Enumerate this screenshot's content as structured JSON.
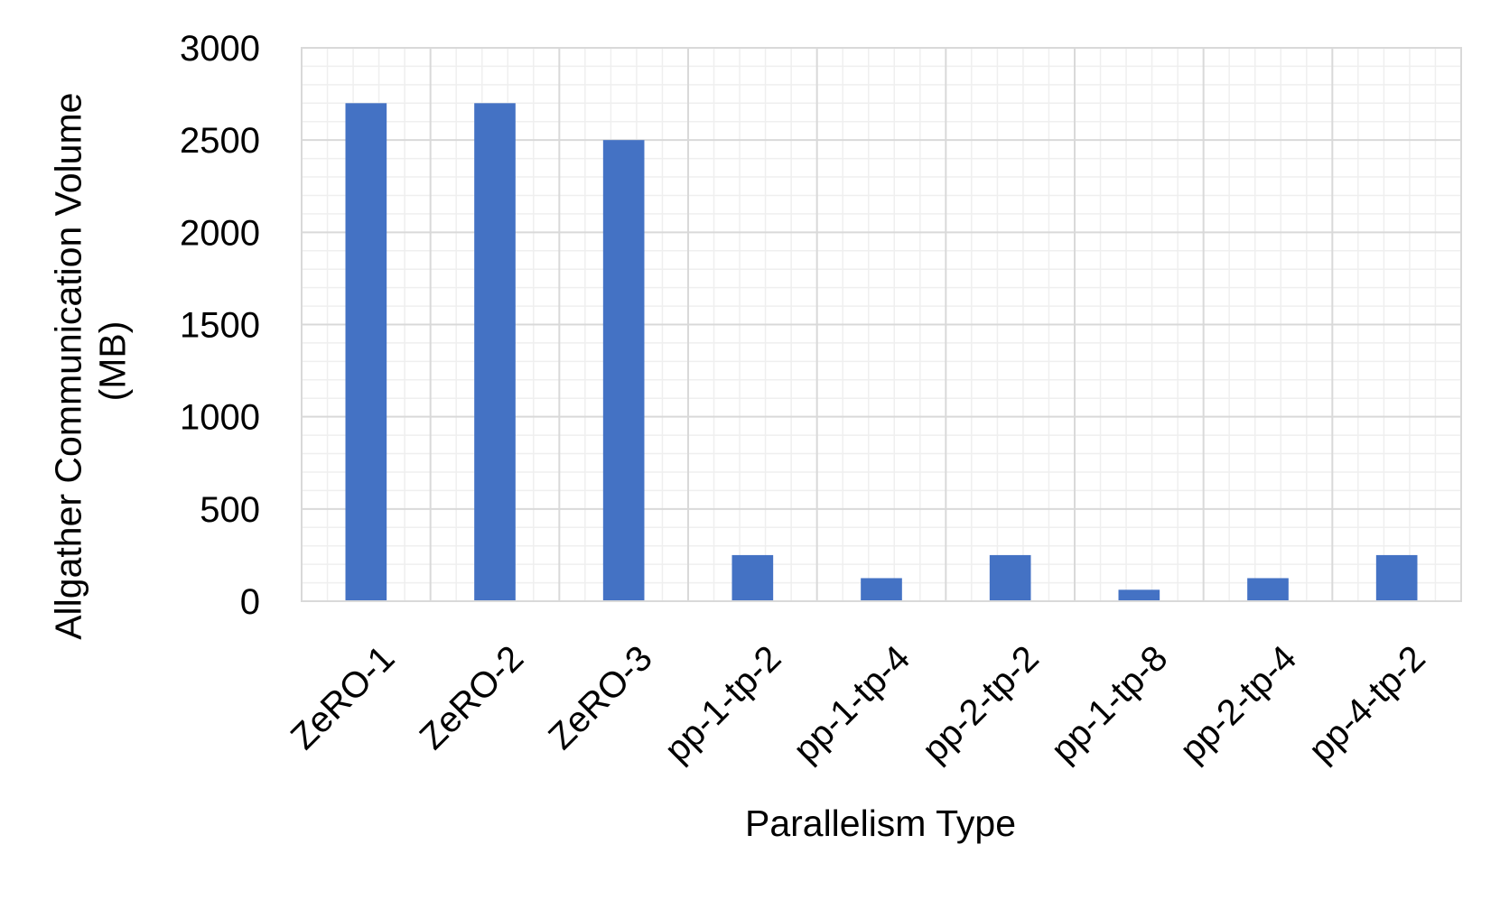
{
  "chart_data": {
    "type": "bar",
    "title": "",
    "xlabel": "Parallelism Type",
    "ylabel_lines": [
      "Allgather Communication Volume",
      "(MB)"
    ],
    "categories": [
      "ZeRO-1",
      "ZeRO-2",
      "ZeRO-3",
      "pp-1-tp-2",
      "pp-1-tp-4",
      "pp-2-tp-2",
      "pp-1-tp-8",
      "pp-2-tp-4",
      "pp-4-tp-2"
    ],
    "values": [
      2700,
      2700,
      2500,
      250,
      125,
      250,
      62,
      125,
      250
    ],
    "ylim": [
      0,
      3000
    ],
    "yticks": [
      "0",
      "500",
      "1000",
      "1500",
      "2000",
      "2500",
      "3000"
    ],
    "ytick_values": [
      0,
      500,
      1000,
      1500,
      2000,
      2500,
      3000
    ],
    "minor_step": 100,
    "grid": true,
    "legend": "none",
    "bar_color": "#4472c4",
    "major_grid_color": "#d9d9d9",
    "minor_grid_color": "#efefef"
  }
}
